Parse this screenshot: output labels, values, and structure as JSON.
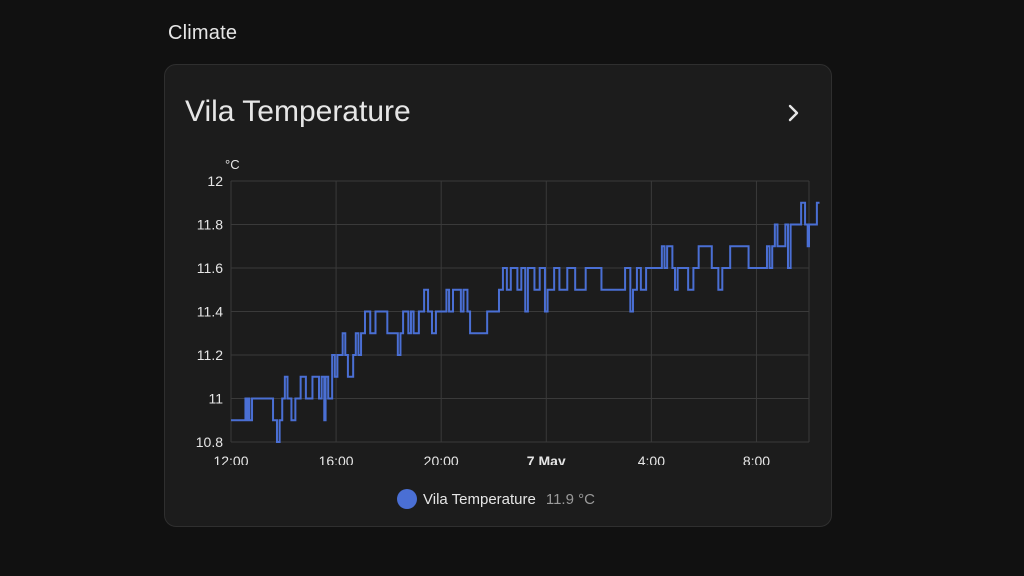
{
  "section": {
    "title": "Climate"
  },
  "card": {
    "title": "Vila Temperature",
    "more_icon": "chevron-right-icon",
    "legend": {
      "name": "Vila Temperature",
      "value": "11.9 °C"
    }
  },
  "colors": {
    "series": "#4a6fd4",
    "grid": "#3a3a3a",
    "axis_text": "#e6e6e6"
  },
  "chart_data": {
    "type": "line",
    "title": "",
    "unit": "°C",
    "ylim": [
      10.8,
      12
    ],
    "yticks": [
      "12",
      "11.8",
      "11.6",
      "11.4",
      "11.2",
      "11",
      "10.8"
    ],
    "ytick_values": [
      12,
      11.8,
      11.6,
      11.4,
      11.2,
      11,
      10.8
    ],
    "xlim_hours": [
      12,
      34
    ],
    "xticks": [
      {
        "label": "12:00",
        "hour": 12,
        "bold": false
      },
      {
        "label": "16:00",
        "hour": 16,
        "bold": false
      },
      {
        "label": "20:00",
        "hour": 20,
        "bold": false
      },
      {
        "label": "7 May",
        "hour": 24,
        "bold": true
      },
      {
        "label": "4:00",
        "hour": 28,
        "bold": false
      },
      {
        "label": "8:00",
        "hour": 32,
        "bold": false
      }
    ],
    "grid": true,
    "step": true,
    "series": [
      {
        "name": "Vila Temperature",
        "points": [
          [
            12.0,
            10.9
          ],
          [
            12.5,
            10.9
          ],
          [
            12.55,
            11.0
          ],
          [
            12.6,
            10.9
          ],
          [
            12.65,
            11.0
          ],
          [
            12.7,
            10.9
          ],
          [
            12.8,
            11.0
          ],
          [
            13.5,
            11.0
          ],
          [
            13.6,
            10.9
          ],
          [
            13.7,
            10.9
          ],
          [
            13.75,
            10.8
          ],
          [
            13.85,
            10.9
          ],
          [
            13.95,
            11.0
          ],
          [
            14.05,
            11.1
          ],
          [
            14.15,
            11.0
          ],
          [
            14.3,
            10.9
          ],
          [
            14.45,
            11.0
          ],
          [
            14.6,
            11.0
          ],
          [
            14.65,
            11.1
          ],
          [
            14.8,
            11.1
          ],
          [
            14.85,
            11.0
          ],
          [
            15.1,
            11.1
          ],
          [
            15.35,
            11.0
          ],
          [
            15.45,
            11.1
          ],
          [
            15.55,
            10.9
          ],
          [
            15.6,
            11.1
          ],
          [
            15.7,
            11.0
          ],
          [
            15.85,
            11.2
          ],
          [
            15.95,
            11.1
          ],
          [
            16.05,
            11.2
          ],
          [
            16.15,
            11.2
          ],
          [
            16.25,
            11.3
          ],
          [
            16.35,
            11.2
          ],
          [
            16.45,
            11.1
          ],
          [
            16.65,
            11.2
          ],
          [
            16.75,
            11.3
          ],
          [
            16.85,
            11.2
          ],
          [
            16.95,
            11.3
          ],
          [
            17.1,
            11.4
          ],
          [
            17.3,
            11.3
          ],
          [
            17.5,
            11.4
          ],
          [
            17.8,
            11.4
          ],
          [
            17.95,
            11.3
          ],
          [
            18.25,
            11.3
          ],
          [
            18.35,
            11.2
          ],
          [
            18.45,
            11.3
          ],
          [
            18.55,
            11.4
          ],
          [
            18.75,
            11.3
          ],
          [
            18.85,
            11.4
          ],
          [
            18.95,
            11.3
          ],
          [
            19.15,
            11.4
          ],
          [
            19.35,
            11.5
          ],
          [
            19.5,
            11.4
          ],
          [
            19.65,
            11.3
          ],
          [
            19.8,
            11.4
          ],
          [
            20.1,
            11.4
          ],
          [
            20.2,
            11.5
          ],
          [
            20.3,
            11.4
          ],
          [
            20.45,
            11.5
          ],
          [
            20.65,
            11.5
          ],
          [
            20.75,
            11.4
          ],
          [
            20.85,
            11.5
          ],
          [
            21.0,
            11.4
          ],
          [
            21.1,
            11.3
          ],
          [
            21.6,
            11.3
          ],
          [
            21.75,
            11.4
          ],
          [
            22.1,
            11.4
          ],
          [
            22.2,
            11.5
          ],
          [
            22.35,
            11.6
          ],
          [
            22.5,
            11.5
          ],
          [
            22.65,
            11.6
          ],
          [
            22.9,
            11.5
          ],
          [
            23.05,
            11.6
          ],
          [
            23.2,
            11.4
          ],
          [
            23.3,
            11.6
          ],
          [
            23.55,
            11.5
          ],
          [
            23.75,
            11.6
          ],
          [
            23.95,
            11.4
          ],
          [
            24.05,
            11.5
          ],
          [
            24.3,
            11.6
          ],
          [
            24.5,
            11.5
          ],
          [
            24.8,
            11.6
          ],
          [
            25.0,
            11.6
          ],
          [
            25.1,
            11.5
          ],
          [
            25.5,
            11.6
          ],
          [
            26.0,
            11.6
          ],
          [
            26.1,
            11.5
          ],
          [
            27.0,
            11.6
          ],
          [
            27.2,
            11.4
          ],
          [
            27.3,
            11.5
          ],
          [
            27.45,
            11.6
          ],
          [
            27.6,
            11.5
          ],
          [
            27.8,
            11.6
          ],
          [
            28.3,
            11.6
          ],
          [
            28.4,
            11.7
          ],
          [
            28.5,
            11.6
          ],
          [
            28.6,
            11.7
          ],
          [
            28.8,
            11.6
          ],
          [
            28.9,
            11.5
          ],
          [
            29.0,
            11.6
          ],
          [
            29.2,
            11.6
          ],
          [
            29.4,
            11.5
          ],
          [
            29.6,
            11.6
          ],
          [
            29.8,
            11.7
          ],
          [
            30.2,
            11.7
          ],
          [
            30.3,
            11.6
          ],
          [
            30.5,
            11.6
          ],
          [
            30.55,
            11.5
          ],
          [
            30.7,
            11.6
          ],
          [
            31.0,
            11.7
          ],
          [
            31.6,
            11.7
          ],
          [
            31.7,
            11.6
          ],
          [
            32.3,
            11.6
          ],
          [
            32.4,
            11.7
          ],
          [
            32.5,
            11.6
          ],
          [
            32.6,
            11.7
          ],
          [
            32.7,
            11.8
          ],
          [
            32.8,
            11.7
          ],
          [
            33.1,
            11.8
          ],
          [
            33.2,
            11.6
          ],
          [
            33.3,
            11.8
          ],
          [
            33.6,
            11.8
          ],
          [
            33.7,
            11.9
          ],
          [
            33.85,
            11.8
          ],
          [
            33.95,
            11.7
          ],
          [
            34.0,
            11.8
          ],
          [
            34.2,
            11.8
          ],
          [
            34.3,
            11.9
          ],
          [
            34.4,
            11.9
          ]
        ]
      }
    ]
  }
}
